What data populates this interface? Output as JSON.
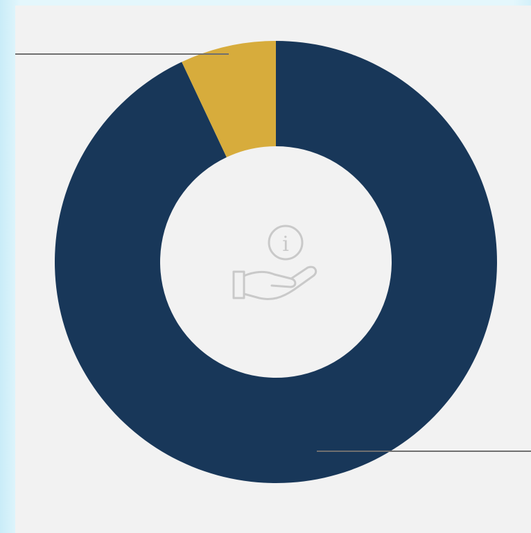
{
  "chart_data": {
    "type": "pie",
    "donut": true,
    "title": "",
    "slices": [
      {
        "value": 93,
        "color": "#183759"
      },
      {
        "value": 7,
        "color": "#d7ac3c"
      }
    ],
    "start": "12 o'clock",
    "direction": "clockwise",
    "center_icon": "hand-holding-coin-icon",
    "leader_lines": true,
    "colors": {
      "background": "#f2f2f2",
      "page": "#e4f7fc",
      "leader": "#6f6f6f",
      "icon": "#c9c9c9"
    }
  }
}
